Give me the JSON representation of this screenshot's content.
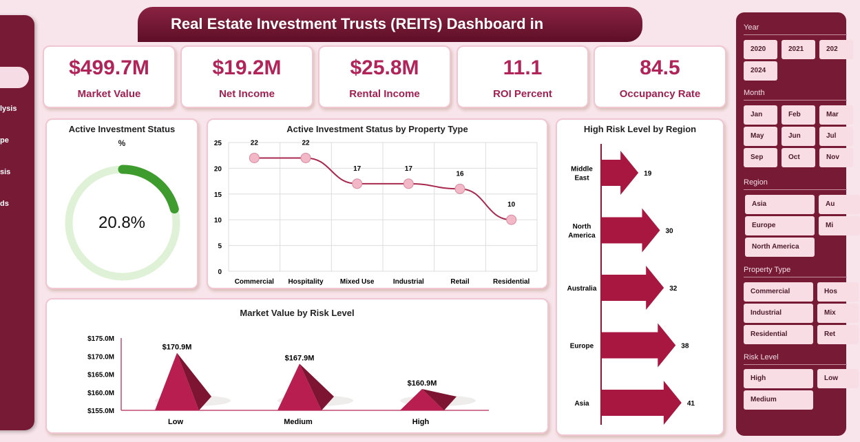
{
  "header": {
    "title": "Real Estate Investment Trusts (REITs) Dashboard in"
  },
  "nav": {
    "items": [
      "lysis",
      "pe",
      "sis",
      "ds"
    ]
  },
  "kpis": [
    {
      "value": "$499.7M",
      "label": "Market Value"
    },
    {
      "value": "$19.2M",
      "label": "Net Income"
    },
    {
      "value": "$25.8M",
      "label": "Rental Income"
    },
    {
      "value": "11.1",
      "label": "ROI Percent"
    },
    {
      "value": "84.5",
      "label": "Occupancy Rate"
    }
  ],
  "donut": {
    "title": "Active Investment Status",
    "subtitle": "%",
    "value": "20.8%",
    "fraction": 0.208,
    "colors": {
      "fill": "#3e9b2e",
      "track": "#dff2d8"
    }
  },
  "line_chart": {
    "title": "Active Investment Status by Property Type",
    "type": "line",
    "categories": [
      "Commercial",
      "Hospitality",
      "Mixed Use",
      "Industrial",
      "Retail",
      "Residential"
    ],
    "values": [
      22,
      22,
      17,
      17,
      16,
      10
    ],
    "yticks": [
      "0",
      "5",
      "10",
      "15",
      "20",
      "25"
    ],
    "ylim": [
      0,
      25
    ],
    "grid": true,
    "color": "#a8284e"
  },
  "pyramid_chart": {
    "title": "Market Value by Risk Level",
    "type": "bar",
    "categories": [
      "Low",
      "Medium",
      "High"
    ],
    "values": [
      170.9,
      167.9,
      160.9
    ],
    "labels": [
      "$170.9M",
      "$167.9M",
      "$160.9M"
    ],
    "yticks": [
      "$155.0M",
      "$160.0M",
      "$165.0M",
      "$170.0M",
      "$175.0M"
    ],
    "ylim": [
      155,
      175
    ],
    "color": "#b81e50"
  },
  "region_chart": {
    "title": "High Risk Level by Region",
    "type": "bar",
    "categories": [
      [
        "Middle",
        "East"
      ],
      [
        "North",
        "America"
      ],
      [
        "Australia"
      ],
      [
        "Europe"
      ],
      [
        "Asia"
      ]
    ],
    "values": [
      19,
      30,
      32,
      38,
      41
    ],
    "color": "#a8173f"
  },
  "filters": {
    "year": {
      "label": "Year",
      "items": [
        "2020",
        "2021",
        "202",
        "2024"
      ]
    },
    "month": {
      "label": "Month",
      "items": [
        "Jan",
        "Feb",
        "Mar",
        "May",
        "Jun",
        "Jul",
        "Sep",
        "Oct",
        "Nov"
      ]
    },
    "region": {
      "label": "Region",
      "items": [
        "Asia",
        "Au",
        "Europe",
        "Mi",
        "North America"
      ]
    },
    "property": {
      "label": "Property Type",
      "items": [
        "Commercial",
        "Hos",
        "Industrial",
        "Mix",
        "Residential",
        "Ret"
      ]
    },
    "risk": {
      "label": "Risk Level",
      "items": [
        "High",
        "Low",
        "Medium"
      ]
    }
  }
}
